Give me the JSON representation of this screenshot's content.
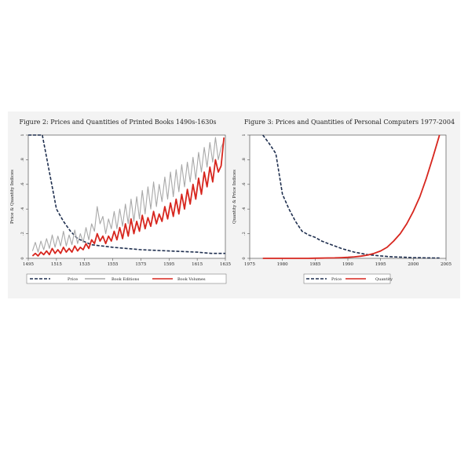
{
  "chart_data": [
    {
      "type": "line",
      "title": "Figure 2: Prices and Quantities of Printed Books 1490s-1630s",
      "ylabel": "Price & Quantity Indices",
      "xlabel": "",
      "xlim": [
        1495,
        1635
      ],
      "ylim": [
        0,
        1
      ],
      "xticks": [
        "1495",
        "1515",
        "1535",
        "1555",
        "1575",
        "1595",
        "1615",
        "1635"
      ],
      "yticks": [
        "0",
        ".2",
        ".4",
        ".6",
        ".8",
        "1"
      ],
      "grid": false,
      "legend": "bottom",
      "series": [
        {
          "name": "Price",
          "color": "#1f2f4f",
          "dash": true,
          "x": [
            1495,
            1500,
            1505,
            1510,
            1515,
            1520,
            1525,
            1530,
            1540,
            1555,
            1575,
            1595,
            1615,
            1625,
            1635
          ],
          "y": [
            1.0,
            1.0,
            1.0,
            0.7,
            0.4,
            0.3,
            0.22,
            0.16,
            0.11,
            0.09,
            0.07,
            0.06,
            0.05,
            0.04,
            0.04
          ]
        },
        {
          "name": "Book Editions",
          "color": "#a8a8a8",
          "dash": false,
          "x": [
            1498,
            1500,
            1502,
            1504,
            1506,
            1508,
            1510,
            1512,
            1514,
            1516,
            1518,
            1520,
            1522,
            1524,
            1526,
            1528,
            1530,
            1532,
            1534,
            1536,
            1538,
            1540,
            1542,
            1544,
            1546,
            1548,
            1550,
            1552,
            1554,
            1556,
            1558,
            1560,
            1562,
            1564,
            1566,
            1568,
            1570,
            1572,
            1574,
            1576,
            1578,
            1580,
            1582,
            1584,
            1586,
            1588,
            1590,
            1592,
            1594,
            1596,
            1598,
            1600,
            1602,
            1604,
            1606,
            1608,
            1610,
            1612,
            1614,
            1616,
            1618,
            1620,
            1622,
            1624,
            1626,
            1628,
            1630,
            1632,
            1634
          ],
          "y": [
            0.06,
            0.13,
            0.05,
            0.14,
            0.07,
            0.16,
            0.08,
            0.19,
            0.09,
            0.18,
            0.1,
            0.22,
            0.1,
            0.19,
            0.11,
            0.23,
            0.12,
            0.2,
            0.13,
            0.25,
            0.15,
            0.28,
            0.22,
            0.42,
            0.28,
            0.34,
            0.2,
            0.32,
            0.24,
            0.38,
            0.24,
            0.4,
            0.26,
            0.44,
            0.28,
            0.48,
            0.3,
            0.5,
            0.32,
            0.55,
            0.36,
            0.58,
            0.4,
            0.62,
            0.42,
            0.6,
            0.46,
            0.66,
            0.48,
            0.7,
            0.5,
            0.72,
            0.54,
            0.76,
            0.58,
            0.78,
            0.62,
            0.82,
            0.64,
            0.86,
            0.7,
            0.9,
            0.74,
            0.94,
            0.78,
            0.98,
            0.8,
            0.9,
            0.95
          ]
        },
        {
          "name": "Book Volumes",
          "color": "#d7261e",
          "dash": false,
          "x": [
            1498,
            1500,
            1502,
            1504,
            1506,
            1508,
            1510,
            1512,
            1514,
            1516,
            1518,
            1520,
            1522,
            1524,
            1526,
            1528,
            1530,
            1532,
            1534,
            1536,
            1538,
            1540,
            1542,
            1544,
            1546,
            1548,
            1550,
            1552,
            1554,
            1556,
            1558,
            1560,
            1562,
            1564,
            1566,
            1568,
            1570,
            1572,
            1574,
            1576,
            1578,
            1580,
            1582,
            1584,
            1586,
            1588,
            1590,
            1592,
            1594,
            1596,
            1598,
            1600,
            1602,
            1604,
            1606,
            1608,
            1610,
            1612,
            1614,
            1616,
            1618,
            1620,
            1622,
            1624,
            1626,
            1628,
            1630,
            1632,
            1634
          ],
          "y": [
            0.02,
            0.04,
            0.02,
            0.05,
            0.03,
            0.06,
            0.03,
            0.08,
            0.04,
            0.07,
            0.04,
            0.09,
            0.05,
            0.08,
            0.05,
            0.1,
            0.06,
            0.09,
            0.07,
            0.12,
            0.08,
            0.15,
            0.12,
            0.2,
            0.14,
            0.18,
            0.12,
            0.18,
            0.14,
            0.22,
            0.15,
            0.25,
            0.16,
            0.28,
            0.18,
            0.32,
            0.2,
            0.3,
            0.22,
            0.35,
            0.24,
            0.33,
            0.26,
            0.38,
            0.28,
            0.36,
            0.3,
            0.42,
            0.32,
            0.45,
            0.34,
            0.48,
            0.36,
            0.52,
            0.4,
            0.56,
            0.44,
            0.6,
            0.48,
            0.65,
            0.52,
            0.7,
            0.58,
            0.74,
            0.62,
            0.8,
            0.7,
            0.75,
            0.98
          ]
        }
      ]
    },
    {
      "type": "line",
      "title": "Figure 3: Prices and Quantities of Personal Computers 1977-2004",
      "ylabel": "Quantity & Price Indices",
      "xlabel": "",
      "xlim": [
        1975,
        2005
      ],
      "ylim": [
        0,
        1
      ],
      "xticks": [
        "1975",
        "1980",
        "1985",
        "1990",
        "1995",
        "2000",
        "2005"
      ],
      "yticks": [
        "0",
        ".2",
        ".4",
        ".6",
        ".8",
        "1"
      ],
      "grid": false,
      "legend": "bottom",
      "series": [
        {
          "name": "Price",
          "color": "#1f2f4f",
          "dash": true,
          "x": [
            1977,
            1978,
            1979,
            1980,
            1981,
            1982,
            1983,
            1984,
            1985,
            1986,
            1987,
            1988,
            1989,
            1990,
            1991,
            1992,
            1993,
            1994,
            1995,
            1996,
            1997,
            1998,
            1999,
            2000,
            2001,
            2002,
            2003,
            2004
          ],
          "y": [
            1.0,
            0.93,
            0.85,
            0.52,
            0.4,
            0.3,
            0.22,
            0.19,
            0.17,
            0.14,
            0.12,
            0.1,
            0.08,
            0.065,
            0.05,
            0.04,
            0.03,
            0.025,
            0.02,
            0.015,
            0.012,
            0.01,
            0.008,
            0.006,
            0.005,
            0.004,
            0.003,
            0.003
          ]
        },
        {
          "name": "Quantity",
          "color": "#d7261e",
          "dash": false,
          "x": [
            1977,
            1978,
            1979,
            1980,
            1981,
            1982,
            1983,
            1984,
            1985,
            1986,
            1987,
            1988,
            1989,
            1990,
            1991,
            1992,
            1993,
            1994,
            1995,
            1996,
            1997,
            1998,
            1999,
            2000,
            2001,
            2002,
            2003,
            2004
          ],
          "y": [
            0,
            0,
            0,
            0,
            0,
            0,
            0,
            0,
            0.001,
            0.002,
            0.003,
            0.004,
            0.006,
            0.008,
            0.012,
            0.018,
            0.026,
            0.04,
            0.06,
            0.09,
            0.14,
            0.2,
            0.28,
            0.38,
            0.5,
            0.65,
            0.82,
            1.0
          ]
        }
      ]
    }
  ]
}
